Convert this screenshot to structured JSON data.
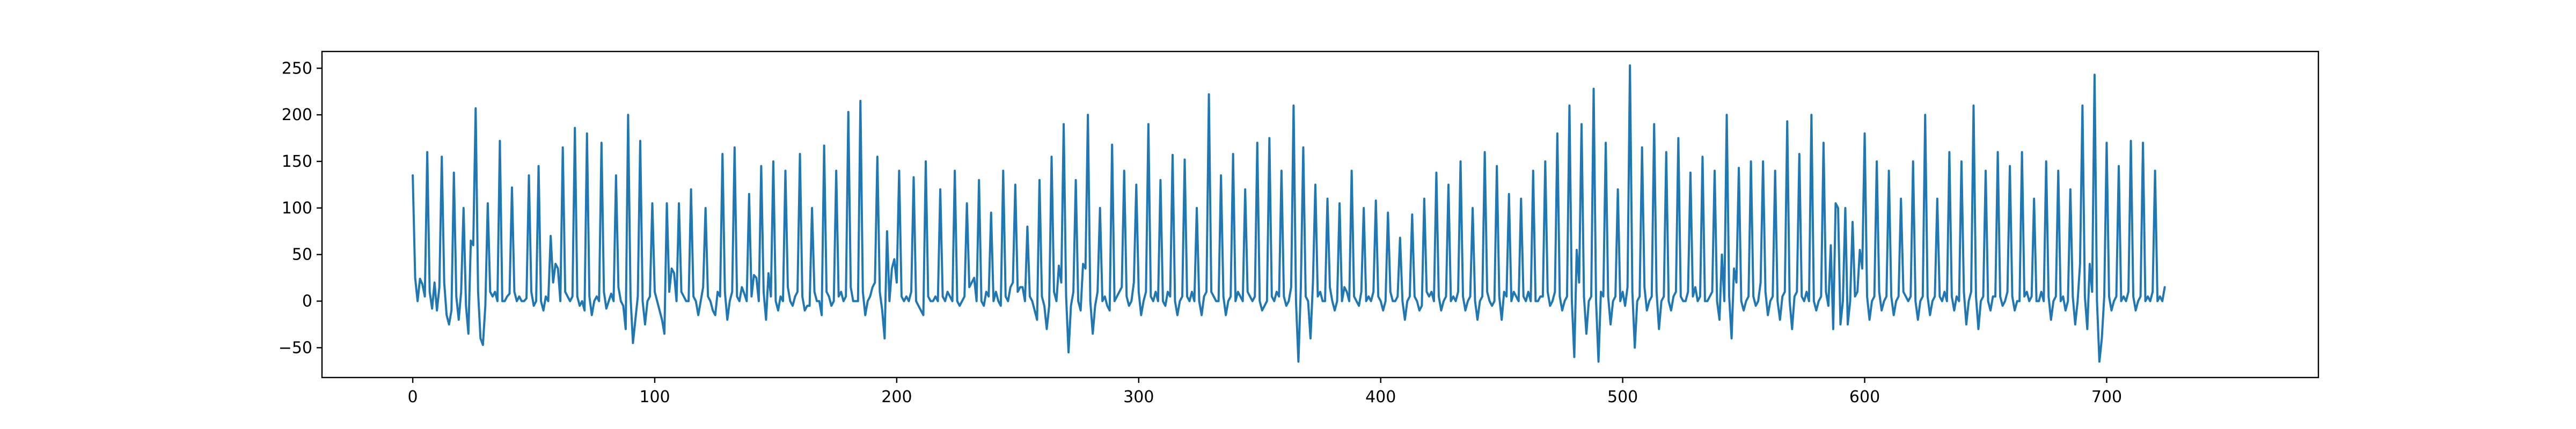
{
  "chart_data": {
    "type": "line",
    "title": "",
    "xlabel": "",
    "ylabel": "",
    "xlim": [
      -37.5,
      787.5
    ],
    "ylim": [
      -82,
      268
    ],
    "x_ticks": [
      0,
      100,
      200,
      300,
      400,
      500,
      600,
      700
    ],
    "x_tick_labels": [
      "0",
      "100",
      "200",
      "300",
      "400",
      "500",
      "600",
      "700"
    ],
    "y_ticks": [
      -50,
      0,
      50,
      100,
      150,
      200,
      250
    ],
    "y_tick_labels": [
      "−50",
      "0",
      "50",
      "100",
      "150",
      "200",
      "250"
    ],
    "grid": false,
    "legend": "none",
    "series": [
      {
        "color": "#1f77b4",
        "x_start": 0,
        "x_step": 1,
        "values": [
          135,
          25,
          0,
          24,
          18,
          5,
          160,
          10,
          -8,
          20,
          -10,
          15,
          155,
          20,
          -15,
          -25,
          -10,
          138,
          5,
          -20,
          10,
          100,
          -5,
          -35,
          65,
          60,
          207,
          10,
          -40,
          -47,
          -5,
          105,
          10,
          5,
          10,
          0,
          172,
          0,
          0,
          5,
          8,
          122,
          10,
          0,
          5,
          0,
          0,
          3,
          135,
          10,
          -5,
          0,
          145,
          0,
          -10,
          5,
          0,
          70,
          20,
          40,
          35,
          0,
          165,
          10,
          5,
          0,
          5,
          186,
          5,
          -5,
          0,
          -10,
          180,
          5,
          -15,
          0,
          5,
          0,
          170,
          10,
          -8,
          0,
          8,
          0,
          135,
          15,
          0,
          -5,
          -30,
          200,
          5,
          -45,
          -20,
          5,
          172,
          0,
          -25,
          0,
          5,
          105,
          10,
          0,
          -10,
          -20,
          -35,
          105,
          10,
          35,
          30,
          0,
          105,
          10,
          5,
          0,
          0,
          120,
          5,
          0,
          -15,
          0,
          15,
          100,
          5,
          0,
          -10,
          -15,
          10,
          5,
          158,
          10,
          -20,
          0,
          10,
          165,
          5,
          0,
          15,
          8,
          0,
          115,
          5,
          28,
          25,
          0,
          145,
          10,
          -20,
          30,
          5,
          150,
          0,
          -10,
          5,
          0,
          140,
          15,
          0,
          -5,
          5,
          10,
          158,
          5,
          -10,
          -5,
          -5,
          100,
          10,
          0,
          0,
          -15,
          167,
          10,
          5,
          -5,
          0,
          140,
          5,
          10,
          0,
          5,
          203,
          15,
          0,
          0,
          0,
          215,
          10,
          -15,
          0,
          5,
          15,
          20,
          155,
          10,
          -10,
          -40,
          75,
          0,
          35,
          45,
          20,
          140,
          5,
          0,
          5,
          0,
          10,
          133,
          0,
          -5,
          -10,
          -15,
          150,
          5,
          0,
          0,
          5,
          0,
          120,
          5,
          0,
          10,
          5,
          0,
          140,
          0,
          -5,
          0,
          5,
          105,
          15,
          20,
          25,
          0,
          130,
          0,
          -5,
          10,
          5,
          95,
          0,
          10,
          0,
          -5,
          140,
          5,
          0,
          15,
          20,
          125,
          10,
          15,
          15,
          0,
          80,
          5,
          0,
          -10,
          -20,
          130,
          5,
          -5,
          -30,
          -5,
          155,
          10,
          0,
          38,
          20,
          190,
          5,
          -55,
          -5,
          10,
          130,
          0,
          -10,
          40,
          35,
          200,
          0,
          -35,
          -5,
          10,
          100,
          0,
          5,
          -5,
          -10,
          168,
          0,
          5,
          10,
          15,
          140,
          5,
          -5,
          0,
          20,
          125,
          10,
          -15,
          0,
          10,
          190,
          5,
          0,
          10,
          0,
          130,
          0,
          -5,
          10,
          5,
          157,
          0,
          -15,
          0,
          5,
          152,
          5,
          0,
          10,
          0,
          100,
          0,
          -15,
          5,
          10,
          222,
          10,
          5,
          0,
          0,
          135,
          5,
          -15,
          0,
          5,
          158,
          0,
          10,
          5,
          0,
          120,
          10,
          5,
          0,
          5,
          170,
          0,
          -10,
          -5,
          0,
          175,
          5,
          0,
          10,
          5,
          140,
          5,
          -5,
          0,
          15,
          210,
          0,
          -65,
          15,
          165,
          5,
          0,
          -40,
          20,
          125,
          5,
          10,
          0,
          0,
          110,
          15,
          0,
          -10,
          0,
          105,
          0,
          15,
          10,
          0,
          140,
          5,
          0,
          -5,
          10,
          100,
          0,
          5,
          0,
          10,
          108,
          5,
          0,
          -10,
          0,
          95,
          10,
          0,
          0,
          5,
          68,
          0,
          -20,
          0,
          5,
          93,
          5,
          0,
          -10,
          -5,
          110,
          10,
          5,
          10,
          0,
          138,
          5,
          -10,
          0,
          5,
          125,
          0,
          5,
          0,
          10,
          150,
          5,
          -10,
          0,
          5,
          100,
          0,
          -20,
          0,
          5,
          160,
          10,
          0,
          -5,
          0,
          145,
          5,
          -20,
          10,
          5,
          115,
          0,
          10,
          5,
          0,
          110,
          5,
          0,
          10,
          0,
          140,
          0,
          0,
          5,
          5,
          150,
          10,
          -5,
          0,
          10,
          180,
          5,
          -10,
          0,
          5,
          210,
          0,
          -60,
          55,
          20,
          190,
          5,
          -35,
          0,
          5,
          228,
          0,
          -65,
          10,
          5,
          170,
          5,
          -25,
          0,
          5,
          120,
          0,
          10,
          -5,
          15,
          253,
          10,
          -50,
          0,
          5,
          165,
          15,
          -10,
          0,
          5,
          190,
          10,
          -30,
          0,
          5,
          160,
          0,
          -10,
          5,
          10,
          175,
          5,
          0,
          0,
          10,
          138,
          5,
          15,
          0,
          5,
          155,
          0,
          0,
          5,
          10,
          140,
          0,
          -20,
          50,
          0,
          200,
          5,
          -40,
          35,
          20,
          143,
          0,
          -10,
          0,
          5,
          150,
          5,
          -5,
          0,
          20,
          150,
          10,
          -15,
          0,
          5,
          140,
          0,
          -20,
          5,
          10,
          193,
          0,
          -30,
          5,
          10,
          158,
          5,
          0,
          10,
          0,
          200,
          0,
          -10,
          0,
          5,
          170,
          10,
          -5,
          60,
          -30,
          105,
          100,
          -25,
          0,
          100,
          -25,
          0,
          85,
          5,
          10,
          55,
          35,
          180,
          5,
          -20,
          0,
          5,
          150,
          10,
          -10,
          0,
          5,
          140,
          5,
          -15,
          0,
          5,
          110,
          10,
          5,
          0,
          5,
          150,
          0,
          -20,
          0,
          5,
          200,
          5,
          -15,
          0,
          5,
          110,
          5,
          0,
          10,
          0,
          160,
          5,
          -10,
          5,
          0,
          150,
          10,
          -25,
          0,
          10,
          210,
          5,
          -30,
          0,
          5,
          140,
          0,
          -10,
          5,
          5,
          160,
          5,
          -5,
          0,
          10,
          145,
          5,
          -10,
          0,
          0,
          160,
          5,
          10,
          0,
          5,
          110,
          0,
          0,
          10,
          0,
          150,
          5,
          -20,
          0,
          5,
          140,
          0,
          5,
          -10,
          0,
          120,
          5,
          -25,
          0,
          40,
          210,
          5,
          -30,
          40,
          10,
          243,
          0,
          -65,
          -40,
          5,
          170,
          5,
          -10,
          0,
          5,
          145,
          0,
          5,
          0,
          10,
          172,
          5,
          -10,
          0,
          5,
          170,
          0,
          5,
          0,
          10,
          140,
          0,
          5,
          0,
          15
        ]
      }
    ]
  }
}
